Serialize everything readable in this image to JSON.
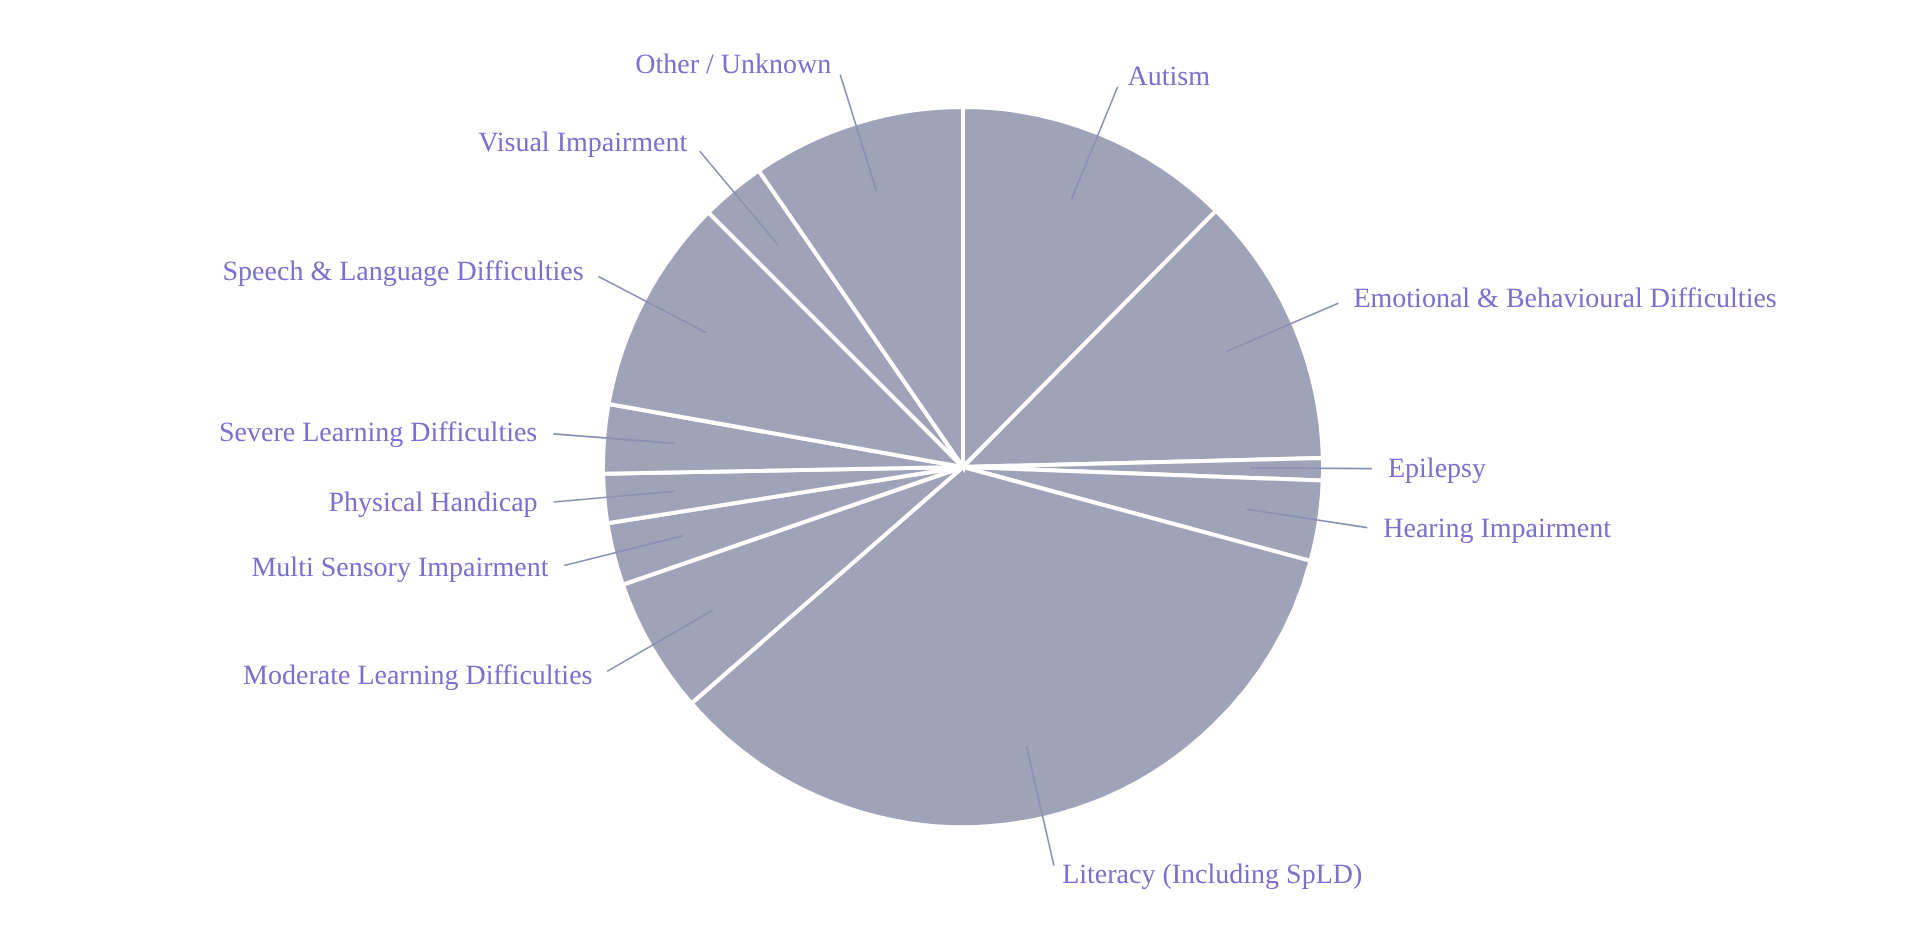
{
  "chart_data": {
    "type": "pie",
    "categories": [
      "Autism",
      "Emotional & Behavioural Difficulties",
      "Epilepsy",
      "Hearing Impairment",
      "Literacy (Including SpLD)",
      "Moderate Learning Difficulties",
      "Multi Sensory Impairment",
      "Physical Handicap",
      "Severe Learning Difficulties",
      "Speech & Language Difficulties",
      "Visual Impairment",
      "Other / Unknown"
    ],
    "values": [
      12.4,
      12.2,
      1.0,
      3.6,
      34.4,
      6.1,
      2.8,
      2.2,
      3.1,
      9.7,
      2.9,
      9.6
    ],
    "colors": [
      "#9ea3b8",
      "#9ea3b8",
      "#9ea3b8",
      "#9ea3b8",
      "#9ea3b8",
      "#9ea3b8",
      "#9ea3b8",
      "#9ea3b8",
      "#9ea3b8",
      "#9ea3b8",
      "#9ea3b8",
      "#9ea3b8"
    ]
  }
}
